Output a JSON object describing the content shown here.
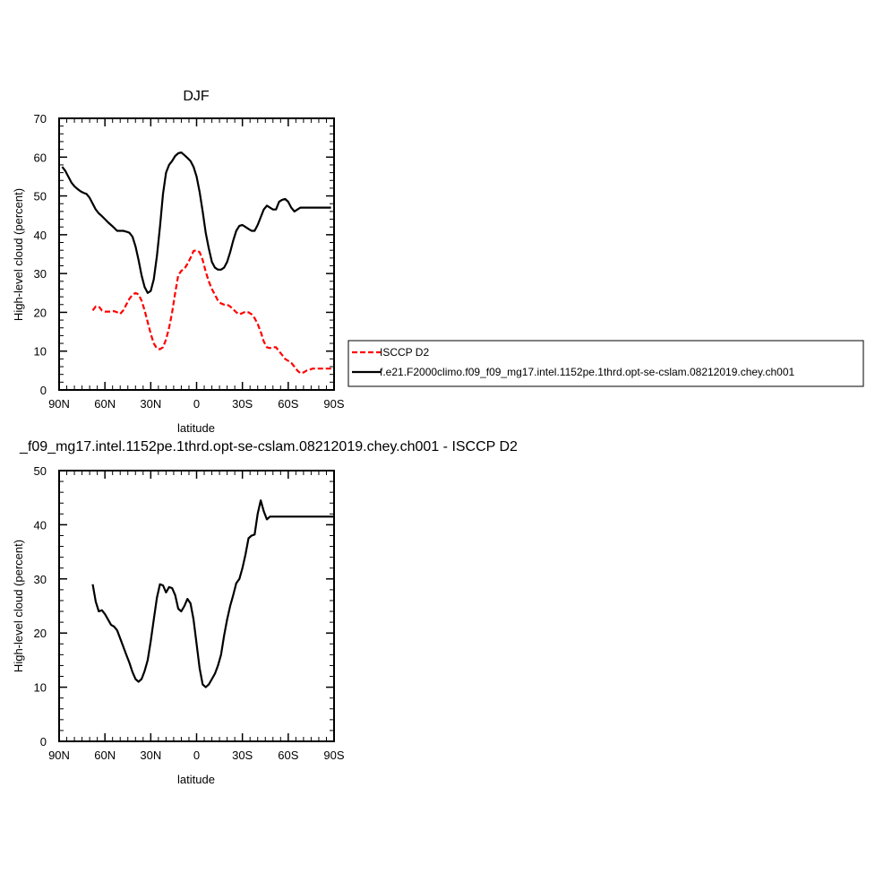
{
  "chart_data": [
    {
      "type": "line",
      "title": "DJF",
      "xlabel": "latitude",
      "ylabel": "High-level cloud (percent)",
      "x_ticks": [
        "90N",
        "60N",
        "30N",
        "0",
        "30S",
        "60S",
        "90S"
      ],
      "x_tick_values": [
        90,
        60,
        30,
        0,
        -30,
        -60,
        -90
      ],
      "xlim": [
        90,
        -90
      ],
      "ylim": [
        0,
        70
      ],
      "y_ticks": [
        0,
        10,
        20,
        30,
        40,
        50,
        60,
        70
      ],
      "grid": false,
      "legend_placement": "right-outside",
      "series": [
        {
          "name": "ISCCP D2",
          "color": "#ff0000",
          "dash": true,
          "x": [
            68,
            66,
            64,
            62,
            60,
            58,
            56,
            54,
            52,
            50,
            48,
            46,
            44,
            42,
            40,
            38,
            36,
            34,
            32,
            30,
            28,
            26,
            24,
            22,
            20,
            18,
            16,
            14,
            12,
            10,
            8,
            6,
            4,
            2,
            0,
            -2,
            -4,
            -6,
            -8,
            -10,
            -12,
            -14,
            -16,
            -18,
            -20,
            -22,
            -24,
            -26,
            -28,
            -30,
            -32,
            -34,
            -36,
            -38,
            -40,
            -42,
            -44,
            -46,
            -48,
            -50,
            -52,
            -54,
            -56,
            -58,
            -60,
            -62,
            -64,
            -66,
            -68,
            -70,
            -72,
            -74,
            -76,
            -78,
            -80,
            -82,
            -84,
            -86,
            -88,
            -90
          ],
          "y": [
            20.5,
            21.5,
            21.5,
            20.5,
            20.2,
            20.2,
            20.2,
            20.3,
            20.0,
            19.6,
            20.5,
            22.0,
            23.5,
            24.5,
            25.0,
            24.6,
            23.0,
            20.5,
            17.5,
            14.5,
            12.0,
            10.7,
            10.5,
            11.0,
            13.0,
            16.0,
            20.0,
            25.0,
            29.5,
            30.7,
            31.2,
            32.5,
            34.0,
            35.8,
            36.0,
            35.5,
            33.5,
            30.5,
            28.0,
            26.0,
            24.5,
            23.0,
            22.3,
            22.0,
            22.0,
            21.5,
            20.8,
            20.0,
            19.5,
            19.8,
            20.2,
            20.0,
            19.5,
            18.5,
            17.0,
            15.0,
            12.5,
            11.0,
            10.8,
            11.0,
            11.0,
            10.0,
            9.0,
            8.0,
            7.5,
            7.0,
            6.0,
            5.0,
            4.3,
            4.5,
            5.0,
            5.2,
            5.5,
            5.5,
            5.5,
            5.5,
            5.5,
            5.5,
            5.5,
            5.5
          ]
        },
        {
          "name": "f.e21.F2000climo.f09_f09_mg17.intel.1152pe.1thrd.opt-se-cslam.08212019.chey.ch001",
          "color": "#000000",
          "dash": false,
          "x": [
            88,
            86,
            84,
            82,
            80,
            78,
            76,
            74,
            72,
            70,
            68,
            66,
            64,
            62,
            60,
            58,
            56,
            54,
            52,
            50,
            48,
            46,
            44,
            42,
            40,
            38,
            36,
            34,
            32,
            30,
            28,
            26,
            24,
            22,
            20,
            18,
            16,
            14,
            12,
            10,
            8,
            6,
            4,
            2,
            0,
            -2,
            -4,
            -6,
            -8,
            -10,
            -12,
            -14,
            -16,
            -18,
            -20,
            -22,
            -24,
            -26,
            -28,
            -30,
            -32,
            -34,
            -36,
            -38,
            -40,
            -42,
            -44,
            -46,
            -48,
            -50,
            -52,
            -54,
            -56,
            -58,
            -60,
            -62,
            -64,
            -66,
            -68,
            -70,
            -72,
            -74,
            -76,
            -78,
            -80,
            -82,
            -84,
            -86,
            -88
          ],
          "y": [
            57.5,
            56.5,
            55.0,
            53.5,
            52.5,
            51.8,
            51.2,
            50.8,
            50.5,
            49.5,
            48.0,
            46.5,
            45.5,
            44.8,
            44.0,
            43.2,
            42.5,
            41.8,
            41.0,
            41.0,
            41.0,
            40.8,
            40.5,
            39.5,
            37.0,
            33.5,
            29.5,
            26.5,
            25.0,
            25.5,
            28.5,
            34.5,
            42.0,
            50.5,
            56.0,
            58.0,
            59.0,
            60.3,
            61.0,
            61.2,
            60.5,
            59.8,
            59.0,
            57.5,
            55.0,
            51.0,
            46.0,
            40.5,
            36.5,
            33.0,
            31.5,
            31.0,
            31.0,
            31.5,
            33.0,
            35.5,
            38.5,
            41.0,
            42.3,
            42.5,
            42.0,
            41.5,
            41.0,
            41.0,
            42.5,
            44.5,
            46.5,
            47.5,
            47.0,
            46.5,
            46.5,
            48.5,
            49.0,
            49.2,
            48.5,
            47.0,
            46.0,
            46.5,
            47.0,
            47.0,
            47.0,
            47.0,
            47.0,
            47.0,
            47.0,
            47.0,
            47.0,
            47.0,
            47.0
          ]
        }
      ]
    },
    {
      "type": "line",
      "title": "_f09_mg17.intel.1152pe.1thrd.opt-se-cslam.08212019.chey.ch001 - ISCCP D2",
      "xlabel": "latitude",
      "ylabel": "High-level cloud (percent)",
      "x_ticks": [
        "90N",
        "60N",
        "30N",
        "0",
        "30S",
        "60S",
        "90S"
      ],
      "x_tick_values": [
        90,
        60,
        30,
        0,
        -30,
        -60,
        -90
      ],
      "xlim": [
        90,
        -90
      ],
      "ylim": [
        0,
        50
      ],
      "y_ticks": [
        0,
        10,
        20,
        30,
        40,
        50
      ],
      "grid": false,
      "series": [
        {
          "color": "#000000",
          "dash": false,
          "x": [
            68,
            66,
            64,
            62,
            60,
            58,
            56,
            54,
            52,
            50,
            48,
            46,
            44,
            42,
            40,
            38,
            36,
            34,
            32,
            30,
            28,
            26,
            24,
            22,
            20,
            18,
            16,
            14,
            12,
            10,
            8,
            6,
            4,
            2,
            0,
            -2,
            -4,
            -6,
            -8,
            -10,
            -12,
            -14,
            -16,
            -18,
            -20,
            -22,
            -24,
            -26,
            -28,
            -30,
            -32,
            -34,
            -36,
            -38,
            -40,
            -42,
            -44,
            -46,
            -48,
            -50,
            -52,
            -54,
            -56,
            -58,
            -60,
            -62,
            -64,
            -66,
            -68,
            -70,
            -72,
            -74,
            -76,
            -78,
            -80,
            -82,
            -84,
            -86,
            -88,
            -90
          ],
          "y": [
            29.0,
            25.8,
            24.0,
            24.2,
            23.5,
            22.5,
            21.5,
            21.2,
            20.5,
            19.0,
            17.5,
            16.0,
            14.5,
            12.8,
            11.5,
            11.0,
            11.5,
            13.0,
            15.0,
            18.5,
            22.5,
            26.5,
            29.0,
            28.8,
            27.5,
            28.5,
            28.3,
            27.0,
            24.5,
            24.0,
            25.0,
            26.3,
            25.5,
            22.5,
            18.0,
            13.5,
            10.5,
            10.0,
            10.5,
            11.5,
            12.5,
            14.0,
            16.0,
            19.5,
            22.5,
            25.0,
            27.0,
            29.2,
            30.0,
            32.0,
            34.5,
            37.5,
            38.0,
            38.2,
            42.0,
            44.5,
            42.5,
            41.0,
            41.5,
            41.5,
            41.5,
            41.5,
            41.5,
            41.5,
            41.5,
            41.5,
            41.5,
            41.5,
            41.5,
            41.5,
            41.5,
            41.5,
            41.5,
            41.5,
            41.5,
            41.5,
            41.5,
            41.5,
            41.5,
            41.5
          ]
        }
      ]
    }
  ]
}
